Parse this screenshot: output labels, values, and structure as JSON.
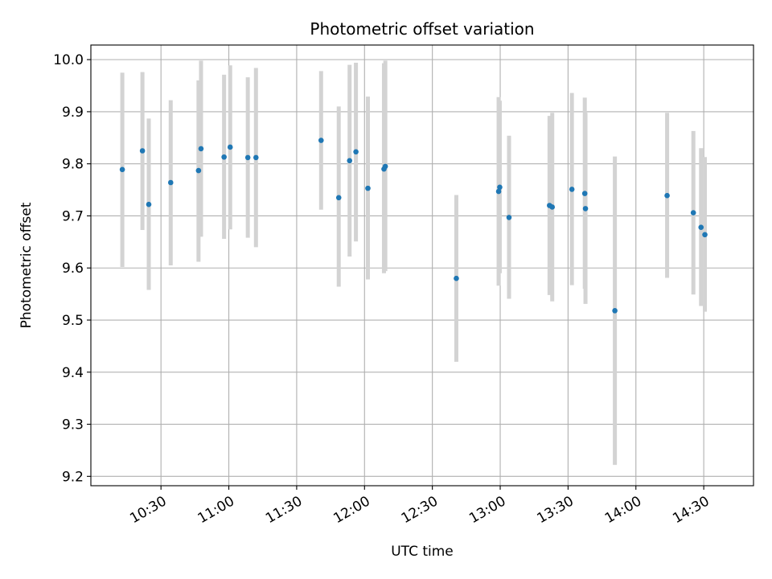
{
  "chart_data": {
    "type": "scatter",
    "title": "Photometric offset variation",
    "xlabel": "UTC time",
    "ylabel": "Photometric offset",
    "x_unit": "minutes since 00:00 UTC",
    "xlim": [
      599,
      892
    ],
    "ylim": [
      9.182,
      10.028
    ],
    "grid": true,
    "point_color": "#1f77b4",
    "errorbar_color": "#d3d3d3",
    "x_ticks": [
      {
        "value": 630,
        "label": "10:30"
      },
      {
        "value": 660,
        "label": "11:00"
      },
      {
        "value": 690,
        "label": "11:30"
      },
      {
        "value": 720,
        "label": "12:00"
      },
      {
        "value": 750,
        "label": "12:30"
      },
      {
        "value": 780,
        "label": "13:00"
      },
      {
        "value": 810,
        "label": "13:30"
      },
      {
        "value": 840,
        "label": "14:00"
      },
      {
        "value": 870,
        "label": "14:30"
      }
    ],
    "y_ticks": [
      {
        "value": 9.2,
        "label": "9.2"
      },
      {
        "value": 9.3,
        "label": "9.3"
      },
      {
        "value": 9.4,
        "label": "9.4"
      },
      {
        "value": 9.5,
        "label": "9.5"
      },
      {
        "value": 9.6,
        "label": "9.6"
      },
      {
        "value": 9.7,
        "label": "9.7"
      },
      {
        "value": 9.8,
        "label": "9.8"
      },
      {
        "value": 9.9,
        "label": "9.9"
      },
      {
        "value": 10.0,
        "label": "10.0"
      }
    ],
    "points": [
      {
        "x": 612.9,
        "y": 9.789,
        "err_low": 9.602,
        "err_high": 9.975
      },
      {
        "x": 621.8,
        "y": 9.825,
        "err_low": 9.673,
        "err_high": 9.976
      },
      {
        "x": 624.6,
        "y": 9.722,
        "err_low": 9.558,
        "err_high": 9.887
      },
      {
        "x": 634.3,
        "y": 9.764,
        "err_low": 9.605,
        "err_high": 9.922
      },
      {
        "x": 646.6,
        "y": 9.787,
        "err_low": 9.612,
        "err_high": 9.96
      },
      {
        "x": 647.7,
        "y": 9.829,
        "err_low": 9.66,
        "err_high": 9.998
      },
      {
        "x": 657.9,
        "y": 9.813,
        "err_low": 9.656,
        "err_high": 9.971
      },
      {
        "x": 660.6,
        "y": 9.832,
        "err_low": 9.674,
        "err_high": 9.989
      },
      {
        "x": 668.4,
        "y": 9.812,
        "err_low": 9.658,
        "err_high": 9.966
      },
      {
        "x": 672.0,
        "y": 9.812,
        "err_low": 9.64,
        "err_high": 9.984
      },
      {
        "x": 700.8,
        "y": 9.845,
        "err_low": 9.712,
        "err_high": 9.978
      },
      {
        "x": 708.6,
        "y": 9.735,
        "err_low": 9.564,
        "err_high": 9.91
      },
      {
        "x": 713.4,
        "y": 9.806,
        "err_low": 9.622,
        "err_high": 9.99
      },
      {
        "x": 716.2,
        "y": 9.823,
        "err_low": 9.651,
        "err_high": 9.994
      },
      {
        "x": 721.5,
        "y": 9.753,
        "err_low": 9.578,
        "err_high": 9.929
      },
      {
        "x": 728.6,
        "y": 9.79,
        "err_low": 9.59,
        "err_high": 9.993
      },
      {
        "x": 729.2,
        "y": 9.795,
        "err_low": 9.594,
        "err_high": 9.998
      },
      {
        "x": 760.6,
        "y": 9.58,
        "err_low": 9.42,
        "err_high": 9.74
      },
      {
        "x": 779.3,
        "y": 9.747,
        "err_low": 9.566,
        "err_high": 9.928
      },
      {
        "x": 779.8,
        "y": 9.755,
        "err_low": 9.59,
        "err_high": 9.921
      },
      {
        "x": 783.9,
        "y": 9.697,
        "err_low": 9.541,
        "err_high": 9.854
      },
      {
        "x": 801.8,
        "y": 9.72,
        "err_low": 9.548,
        "err_high": 9.892
      },
      {
        "x": 803.0,
        "y": 9.717,
        "err_low": 9.536,
        "err_high": 9.898
      },
      {
        "x": 811.7,
        "y": 9.751,
        "err_low": 9.567,
        "err_high": 9.936
      },
      {
        "x": 817.4,
        "y": 9.743,
        "err_low": 9.56,
        "err_high": 9.927
      },
      {
        "x": 817.7,
        "y": 9.714,
        "err_low": 9.531,
        "err_high": 9.898
      },
      {
        "x": 830.7,
        "y": 9.518,
        "err_low": 9.222,
        "err_high": 9.814
      },
      {
        "x": 853.8,
        "y": 9.739,
        "err_low": 9.581,
        "err_high": 9.898
      },
      {
        "x": 865.4,
        "y": 9.706,
        "err_low": 9.549,
        "err_high": 9.863
      },
      {
        "x": 868.8,
        "y": 9.678,
        "err_low": 9.527,
        "err_high": 9.83
      },
      {
        "x": 870.5,
        "y": 9.664,
        "err_low": 9.516,
        "err_high": 9.813
      }
    ]
  }
}
